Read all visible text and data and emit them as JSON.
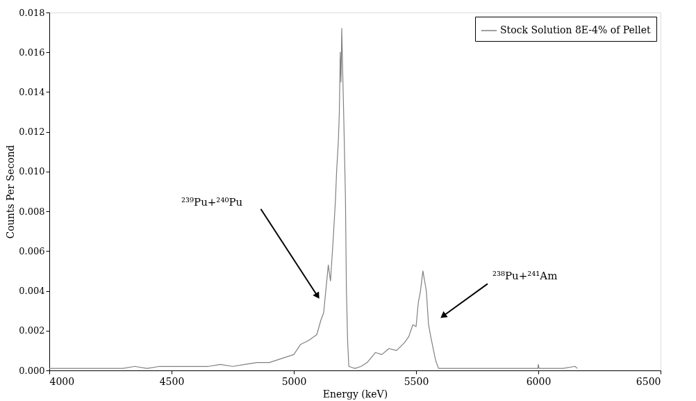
{
  "chart_data": {
    "type": "line",
    "xlabel": "Energy (keV)",
    "ylabel": "Counts Per Second",
    "xlim": [
      4000,
      6500
    ],
    "xticks": [
      4000,
      4500,
      5000,
      5500,
      6000,
      6500
    ],
    "ylim": [
      0,
      0.018
    ],
    "yticks": [
      {
        "value": 0,
        "label": "0.000"
      },
      {
        "value": 0.002,
        "label": "0.002"
      },
      {
        "value": 0.004,
        "label": "0.004"
      },
      {
        "value": 0.006,
        "label": "0.006"
      },
      {
        "value": 0.008,
        "label": "0.008"
      },
      {
        "value": 0.01,
        "label": "0.010"
      },
      {
        "value": 0.012,
        "label": "0.012"
      },
      {
        "value": 0.014,
        "label": "0.014"
      },
      {
        "value": 0.016,
        "label": "0.016"
      },
      {
        "value": 0.018,
        "label": "0.018"
      }
    ],
    "grid": false,
    "legend": "top right",
    "marker": "none",
    "line_style": "solid",
    "series": [
      {
        "name": "Stock Solution 8E-4% of Pellet",
        "color": "#808080",
        "x": [
          4000,
          4050,
          4100,
          4150,
          4200,
          4250,
          4300,
          4350,
          4400,
          4450,
          4500,
          4550,
          4600,
          4650,
          4700,
          4750,
          4800,
          4850,
          4900,
          4950,
          5000,
          5027,
          5060,
          5094,
          5110,
          5122,
          5141,
          5150,
          5161,
          5170,
          5175,
          5182,
          5186,
          5190,
          5193,
          5196,
          5200,
          5205,
          5211,
          5215,
          5220,
          5225,
          5250,
          5275,
          5300,
          5334,
          5360,
          5389,
          5420,
          5453,
          5470,
          5487,
          5500,
          5509,
          5518,
          5528,
          5535,
          5542,
          5551,
          5560,
          5570,
          5580,
          5592,
          5650,
          5700,
          5750,
          5800,
          5850,
          5900,
          5950,
          5998,
          6000,
          6003,
          6050,
          6100,
          6150,
          6160
        ],
        "values": [
          0.0001,
          0.0001,
          0.0001,
          0.0001,
          0.0001,
          0.0001,
          0.0001,
          0.0002,
          0.0001,
          0.0002,
          0.0002,
          0.0002,
          0.0002,
          0.0002,
          0.0003,
          0.0002,
          0.0003,
          0.0004,
          0.0004,
          0.0006,
          0.0008,
          0.0013,
          0.0015,
          0.0018,
          0.0025,
          0.0029,
          0.0053,
          0.0045,
          0.0066,
          0.0085,
          0.01,
          0.0115,
          0.0129,
          0.016,
          0.0145,
          0.0172,
          0.015,
          0.0123,
          0.0088,
          0.0041,
          0.0015,
          0.0002,
          0.0001,
          0.0002,
          0.0004,
          0.0009,
          0.0008,
          0.0011,
          0.001,
          0.0014,
          0.0017,
          0.0023,
          0.0022,
          0.0034,
          0.004,
          0.005,
          0.0045,
          0.004,
          0.0023,
          0.0017,
          0.0011,
          0.0005,
          0.0001,
          0.0001,
          0.0001,
          0.0001,
          0.0001,
          0.0001,
          0.0001,
          0.0001,
          0.0001,
          0.0003,
          0.0001,
          0.0001,
          0.0001,
          0.0002,
          0.0001
        ]
      }
    ],
    "annotations": [
      "²³⁹Pu+²⁴⁰Pu",
      "²³⁸Pu+²⁴¹Am"
    ]
  }
}
